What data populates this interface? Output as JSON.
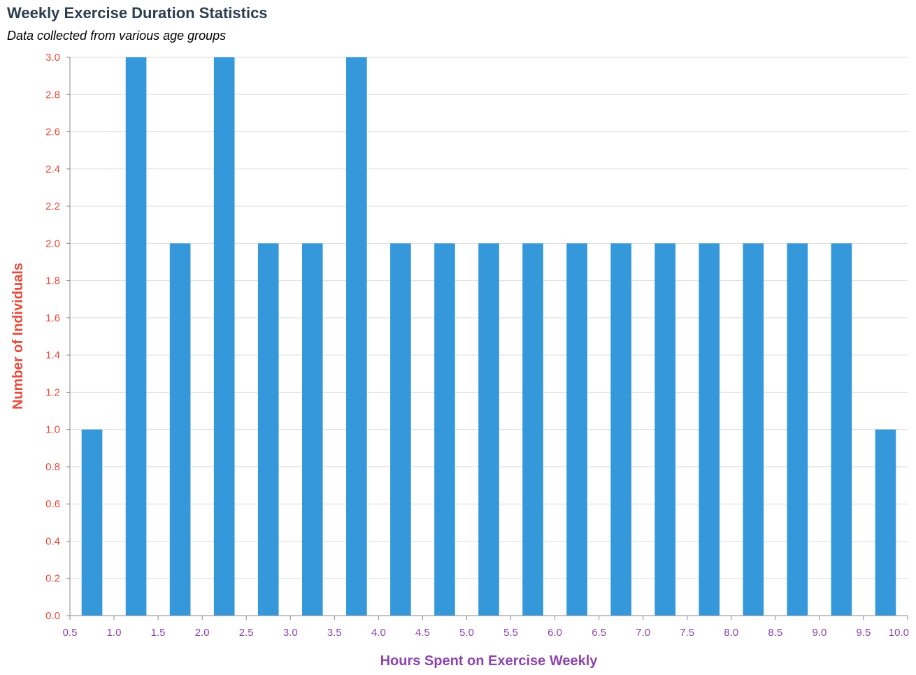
{
  "chart_data": {
    "type": "bar",
    "title": "Weekly Exercise Duration Statistics",
    "subtitle": "Data collected from various age groups",
    "xlabel": "Hours Spent on Exercise Weekly",
    "ylabel": "Number of Individuals",
    "bin_width": 0.5,
    "bins": [
      {
        "start": 0.5,
        "end": 1.0,
        "count": 1
      },
      {
        "start": 1.0,
        "end": 1.5,
        "count": 3
      },
      {
        "start": 1.5,
        "end": 2.0,
        "count": 2
      },
      {
        "start": 2.0,
        "end": 2.5,
        "count": 3
      },
      {
        "start": 2.5,
        "end": 3.0,
        "count": 2
      },
      {
        "start": 3.0,
        "end": 3.5,
        "count": 2
      },
      {
        "start": 3.5,
        "end": 4.0,
        "count": 3
      },
      {
        "start": 4.0,
        "end": 4.5,
        "count": 2
      },
      {
        "start": 4.5,
        "end": 5.0,
        "count": 2
      },
      {
        "start": 5.0,
        "end": 5.5,
        "count": 2
      },
      {
        "start": 5.5,
        "end": 6.0,
        "count": 2
      },
      {
        "start": 6.0,
        "end": 6.5,
        "count": 2
      },
      {
        "start": 6.5,
        "end": 7.0,
        "count": 2
      },
      {
        "start": 7.0,
        "end": 7.5,
        "count": 2
      },
      {
        "start": 7.5,
        "end": 8.0,
        "count": 2
      },
      {
        "start": 8.0,
        "end": 8.5,
        "count": 2
      },
      {
        "start": 8.5,
        "end": 9.0,
        "count": 2
      },
      {
        "start": 9.0,
        "end": 9.5,
        "count": 2
      },
      {
        "start": 9.5,
        "end": 10.0,
        "count": 1
      }
    ],
    "xlim": [
      0.5,
      10.0
    ],
    "ylim": [
      0,
      3.0
    ],
    "x_ticks": [
      "0.5",
      "1.0",
      "1.5",
      "2.0",
      "2.5",
      "3.0",
      "3.5",
      "4.0",
      "4.5",
      "5.0",
      "5.5",
      "6.0",
      "6.5",
      "7.0",
      "7.5",
      "8.0",
      "8.5",
      "9.0",
      "9.5",
      "10.0"
    ],
    "y_ticks": [
      "0.0",
      "0.2",
      "0.4",
      "0.6",
      "0.8",
      "1.0",
      "1.2",
      "1.4",
      "1.6",
      "1.8",
      "2.0",
      "2.2",
      "2.4",
      "2.6",
      "2.8",
      "3.0"
    ],
    "grid": "horizontal",
    "legend": "none",
    "colors": {
      "bar": "#3498db",
      "title": "#2c3e50",
      "x_axis_text": "#8e44ad",
      "y_axis_text": "#e74c3c",
      "grid": "#dddddd",
      "axis": "#888888"
    }
  }
}
